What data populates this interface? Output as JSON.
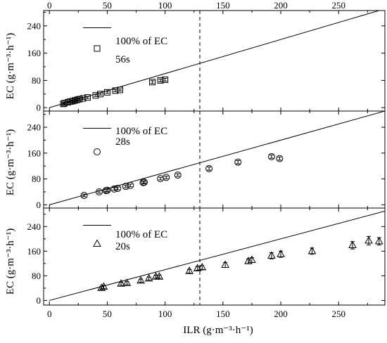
{
  "chart_data": {
    "type": "scatter",
    "xlabel": "ILR (g·m⁻³·h⁻¹)",
    "ylabel": "EC (g·m⁻³·h⁻¹)",
    "xlim": [
      -5,
      290
    ],
    "x_ticks": [
      0,
      50,
      100,
      150,
      200,
      250
    ],
    "x_top_ticks": [
      0,
      50,
      100,
      150,
      200,
      250
    ],
    "vertical_reference_x": 130,
    "grid": false,
    "panels": [
      {
        "ylim": [
          -10,
          285
        ],
        "y_ticks": [
          0,
          80,
          160,
          240
        ],
        "line_label": "100% of EC",
        "series_label": "56s",
        "marker": "square",
        "points": [
          {
            "x": 12,
            "y": 11,
            "err": 3
          },
          {
            "x": 13,
            "y": 13,
            "err": 3
          },
          {
            "x": 16,
            "y": 16,
            "err": 3
          },
          {
            "x": 18,
            "y": 18,
            "err": 3
          },
          {
            "x": 20,
            "y": 19,
            "err": 3
          },
          {
            "x": 22,
            "y": 21,
            "err": 3
          },
          {
            "x": 24,
            "y": 23,
            "err": 3
          },
          {
            "x": 26,
            "y": 25,
            "err": 3
          },
          {
            "x": 29,
            "y": 27,
            "err": 3
          },
          {
            "x": 33,
            "y": 30,
            "err": 3
          },
          {
            "x": 40,
            "y": 36,
            "err": 3
          },
          {
            "x": 44,
            "y": 40,
            "err": 3
          },
          {
            "x": 50,
            "y": 45,
            "err": 3
          },
          {
            "x": 57,
            "y": 50,
            "err": 3
          },
          {
            "x": 61,
            "y": 52,
            "err": 3
          },
          {
            "x": 89,
            "y": 75,
            "err": 4
          },
          {
            "x": 96,
            "y": 80,
            "err": 4
          },
          {
            "x": 100,
            "y": 82,
            "err": 4
          }
        ]
      },
      {
        "ylim": [
          -10,
          290
        ],
        "y_ticks": [
          0,
          80,
          160,
          240
        ],
        "line_label": "100% of EC",
        "series_label": "28s",
        "marker": "circle",
        "points": [
          {
            "x": 30,
            "y": 29,
            "err": 4
          },
          {
            "x": 43,
            "y": 40,
            "err": 4
          },
          {
            "x": 49,
            "y": 44,
            "err": 4
          },
          {
            "x": 50,
            "y": 45,
            "err": 4
          },
          {
            "x": 56,
            "y": 49,
            "err": 4
          },
          {
            "x": 59,
            "y": 51,
            "err": 4
          },
          {
            "x": 66,
            "y": 57,
            "err": 4
          },
          {
            "x": 70,
            "y": 60,
            "err": 4
          },
          {
            "x": 81,
            "y": 69,
            "err": 4
          },
          {
            "x": 82,
            "y": 70,
            "err": 4
          },
          {
            "x": 96,
            "y": 81,
            "err": 4
          },
          {
            "x": 101,
            "y": 85,
            "err": 4
          },
          {
            "x": 111,
            "y": 92,
            "err": 4
          },
          {
            "x": 138,
            "y": 112,
            "err": 5
          },
          {
            "x": 163,
            "y": 132,
            "err": 5
          },
          {
            "x": 192,
            "y": 149,
            "err": 5
          },
          {
            "x": 199,
            "y": 143,
            "err": 5
          }
        ]
      },
      {
        "ylim": [
          -15,
          300
        ],
        "y_ticks": [
          0,
          80,
          160,
          240
        ],
        "line_label": "100% of EC",
        "series_label": "20s",
        "marker": "triangle",
        "points": [
          {
            "x": 45,
            "y": 40,
            "err": 5
          },
          {
            "x": 47,
            "y": 44,
            "err": 5
          },
          {
            "x": 62,
            "y": 54,
            "err": 5
          },
          {
            "x": 67,
            "y": 56,
            "err": 5
          },
          {
            "x": 79,
            "y": 64,
            "err": 5
          },
          {
            "x": 86,
            "y": 71,
            "err": 5
          },
          {
            "x": 92,
            "y": 77,
            "err": 5
          },
          {
            "x": 95,
            "y": 77,
            "err": 5
          },
          {
            "x": 121,
            "y": 95,
            "err": 6
          },
          {
            "x": 128,
            "y": 104,
            "err": 6
          },
          {
            "x": 132,
            "y": 107,
            "err": 6
          },
          {
            "x": 152,
            "y": 115,
            "err": 8
          },
          {
            "x": 172,
            "y": 127,
            "err": 8
          },
          {
            "x": 175,
            "y": 131,
            "err": 8
          },
          {
            "x": 192,
            "y": 145,
            "err": 10
          },
          {
            "x": 200,
            "y": 150,
            "err": 10
          },
          {
            "x": 227,
            "y": 160,
            "err": 10
          },
          {
            "x": 262,
            "y": 179,
            "err": 12
          },
          {
            "x": 276,
            "y": 194,
            "err": 14
          },
          {
            "x": 285,
            "y": 192,
            "err": 12
          }
        ]
      }
    ]
  }
}
